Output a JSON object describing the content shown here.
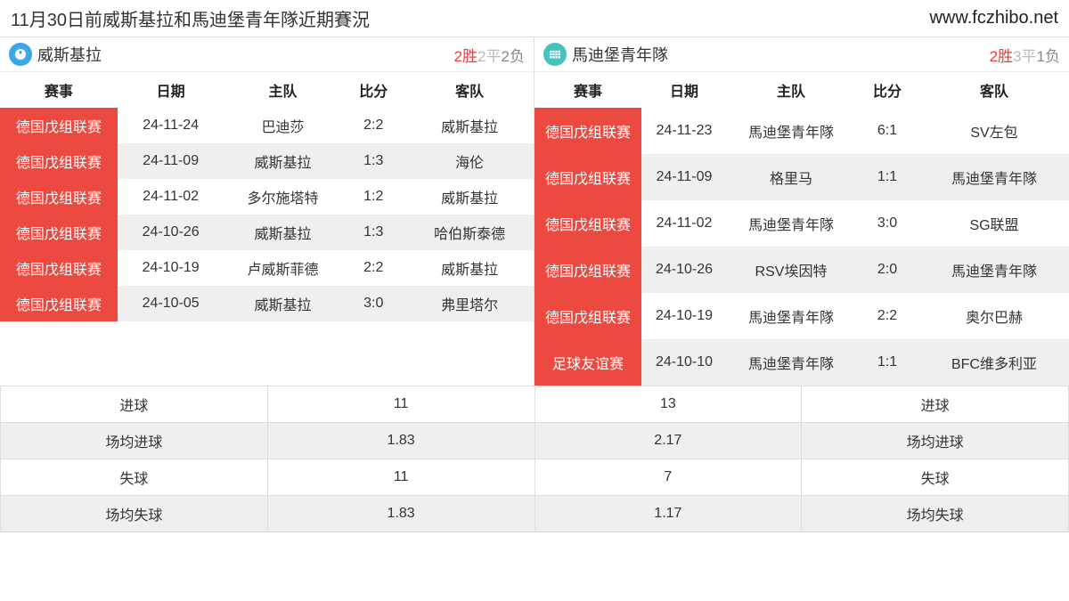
{
  "header": {
    "title": "11月30日前威斯基拉和馬迪堡青年隊近期賽況",
    "url": "www.fczhibo.net"
  },
  "colors": {
    "icon1": "#3aa6e6",
    "icon2": "#49c1bd",
    "league_bg": "#ec4940",
    "win": "#e6413c",
    "draw": "#bbbbbb",
    "lose": "#888888"
  },
  "columns": [
    "赛事",
    "日期",
    "主队",
    "比分",
    "客队"
  ],
  "left": {
    "team": "威斯基拉",
    "record": {
      "win": "2胜",
      "draw": "2平",
      "lose": "2负"
    },
    "rows": [
      {
        "league": "德国戊组联赛",
        "date": "24-11-24",
        "home": "巴迪莎",
        "score": "2:2",
        "away": "威斯基拉"
      },
      {
        "league": "德国戊组联赛",
        "date": "24-11-09",
        "home": "威斯基拉",
        "score": "1:3",
        "away": "海伦"
      },
      {
        "league": "德国戊组联赛",
        "date": "24-11-02",
        "home": "多尔施塔特",
        "score": "1:2",
        "away": "威斯基拉"
      },
      {
        "league": "德国戊组联赛",
        "date": "24-10-26",
        "home": "威斯基拉",
        "score": "1:3",
        "away": "哈伯斯泰德"
      },
      {
        "league": "德国戊组联赛",
        "date": "24-10-19",
        "home": "卢威斯菲德",
        "score": "2:2",
        "away": "威斯基拉"
      },
      {
        "league": "德国戊组联赛",
        "date": "24-10-05",
        "home": "威斯基拉",
        "score": "3:0",
        "away": "弗里塔尔"
      }
    ]
  },
  "right": {
    "team": "馬迪堡青年隊",
    "record": {
      "win": "2胜",
      "draw": "3平",
      "lose": "1负"
    },
    "rows": [
      {
        "league": "德国戊组联赛",
        "date": "24-11-23",
        "home": "馬迪堡青年隊",
        "score": "6:1",
        "away": "SV左包"
      },
      {
        "league": "德国戊组联赛",
        "date": "24-11-09",
        "home": "格里马",
        "score": "1:1",
        "away": "馬迪堡青年隊"
      },
      {
        "league": "德国戊组联赛",
        "date": "24-11-02",
        "home": "馬迪堡青年隊",
        "score": "3:0",
        "away": "SG联盟"
      },
      {
        "league": "德国戊组联赛",
        "date": "24-10-26",
        "home": "RSV埃因特",
        "score": "2:0",
        "away": "馬迪堡青年隊"
      },
      {
        "league": "德国戊组联赛",
        "date": "24-10-19",
        "home": "馬迪堡青年隊",
        "score": "2:2",
        "away": "奥尔巴赫"
      },
      {
        "league": "足球友谊赛",
        "date": "24-10-10",
        "home": "馬迪堡青年隊",
        "score": "1:1",
        "away": "BFC维多利亚"
      }
    ]
  },
  "stats": {
    "labels": {
      "goals": "进球",
      "avg_goals": "场均进球",
      "conceded": "失球",
      "avg_conceded": "场均失球"
    },
    "left": {
      "goals": "11",
      "avg_goals": "1.83",
      "conceded": "11",
      "avg_conceded": "1.83"
    },
    "right": {
      "goals": "13",
      "avg_goals": "2.17",
      "conceded": "7",
      "avg_conceded": "1.17"
    }
  }
}
